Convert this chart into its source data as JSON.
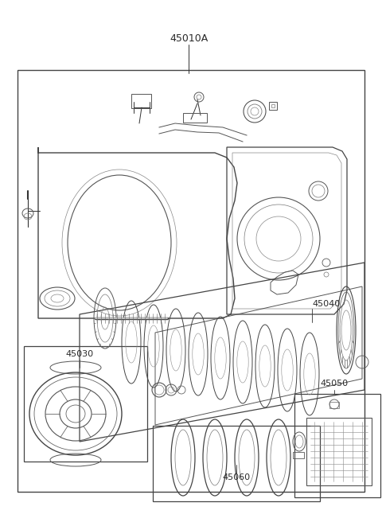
{
  "bg_color": "#ffffff",
  "line_color": "#333333",
  "text_color": "#2a2a2a",
  "title_label": "45010A",
  "label_45040": "45040",
  "label_45030": "45030",
  "label_45050": "45050",
  "label_45060": "45060",
  "figsize": [
    4.8,
    6.56
  ],
  "dpi": 100
}
